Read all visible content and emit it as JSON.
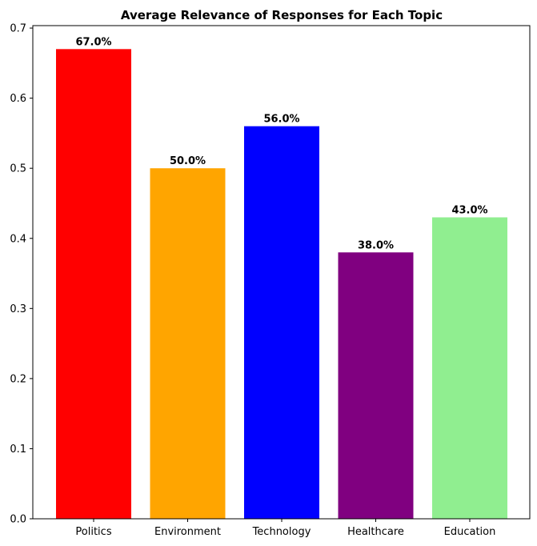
{
  "chart_data": {
    "type": "bar",
    "title": "Average Relevance of Responses for Each Topic",
    "xlabel": "",
    "ylabel": "",
    "categories": [
      "Politics",
      "Environment",
      "Technology",
      "Healthcare",
      "Education"
    ],
    "values": [
      0.67,
      0.5,
      0.56,
      0.38,
      0.43
    ],
    "data_labels": [
      "67.0%",
      "50.0%",
      "56.0%",
      "38.0%",
      "43.0%"
    ],
    "colors": [
      "#ff0000",
      "#ffa500",
      "#0000ff",
      "#800080",
      "#90ee90"
    ],
    "ylim": [
      0,
      0.7
    ],
    "yticks": [
      0.0,
      0.1,
      0.2,
      0.3,
      0.4,
      0.5,
      0.6,
      0.7
    ],
    "ytick_labels": [
      "0.0",
      "0.1",
      "0.2",
      "0.3",
      "0.4",
      "0.5",
      "0.6",
      "0.7"
    ],
    "grid": false,
    "legend": "none"
  }
}
